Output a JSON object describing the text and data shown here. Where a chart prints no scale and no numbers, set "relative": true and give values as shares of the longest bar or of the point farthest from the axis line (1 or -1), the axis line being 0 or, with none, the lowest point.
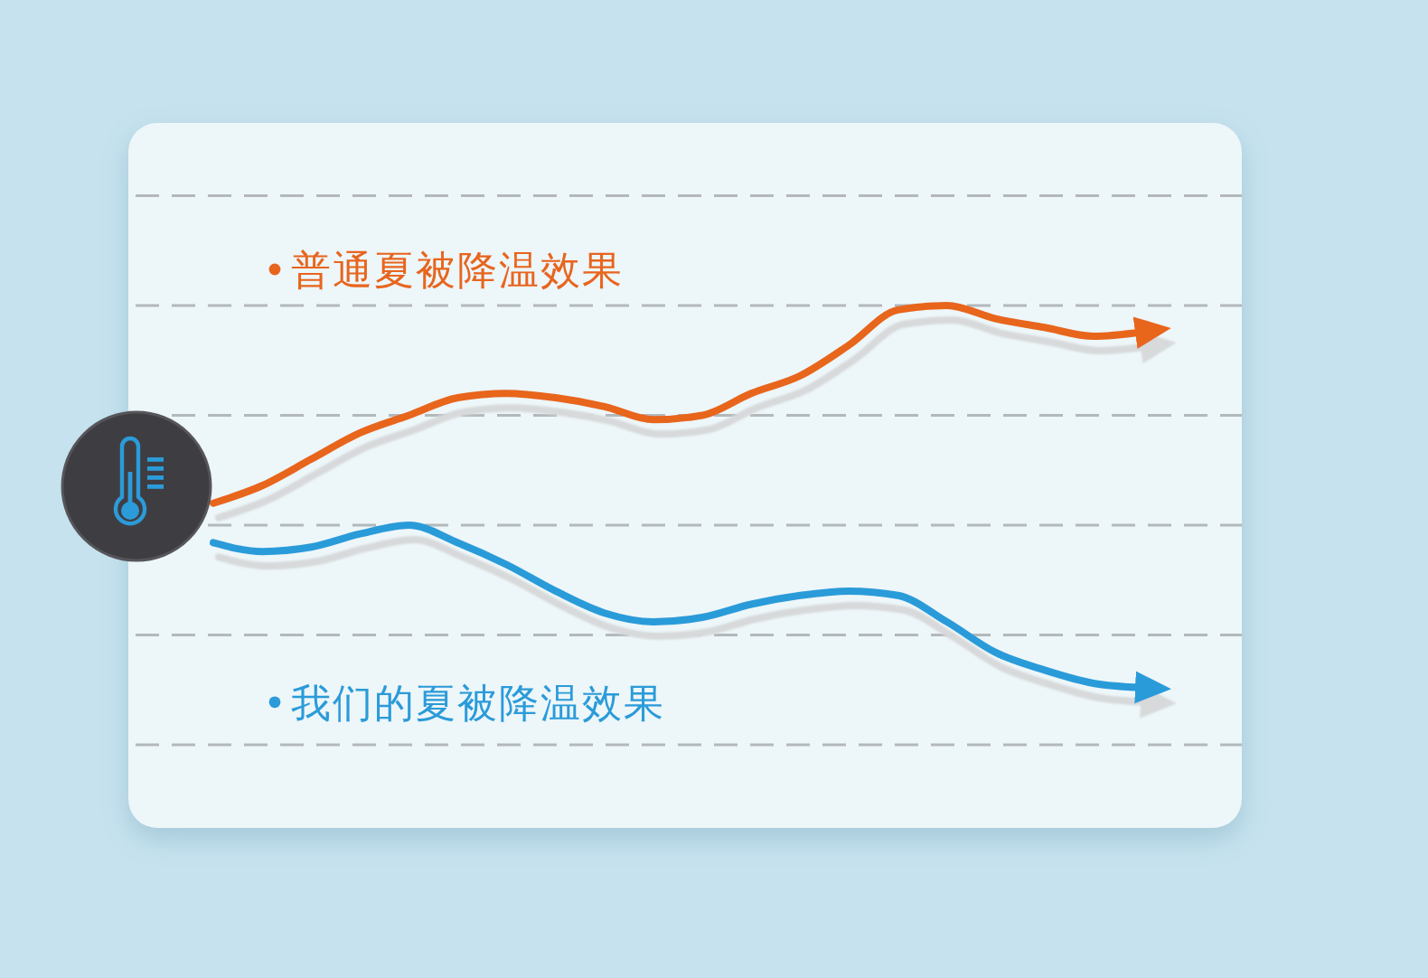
{
  "chart_data": {
    "type": "line",
    "relative": true,
    "grid": "y",
    "legend": "left",
    "categories": [
      null,
      null,
      null,
      null,
      null,
      null,
      null,
      null,
      null,
      null,
      null,
      null,
      null,
      null,
      null,
      null,
      null,
      null,
      null,
      null
    ],
    "series": [
      {
        "name": "普通夏被降温效果",
        "color": "#e8651e",
        "values": [
          0.55,
          0.59,
          0.65,
          0.71,
          0.75,
          0.79,
          0.8,
          0.79,
          0.77,
          0.74,
          0.75,
          0.8,
          0.84,
          0.91,
          0.99,
          1,
          0.97,
          0.95,
          0.93,
          0.94
        ]
      },
      {
        "name": "我们的夏被降温效果",
        "color": "#2b9bd9",
        "values": [
          0.46,
          0.44,
          0.45,
          0.48,
          0.5,
          0.46,
          0.41,
          0.35,
          0.3,
          0.28,
          0.29,
          0.32,
          0.34,
          0.35,
          0.34,
          0.28,
          0.21,
          0.17,
          0.14,
          0.13
        ]
      }
    ]
  }
}
